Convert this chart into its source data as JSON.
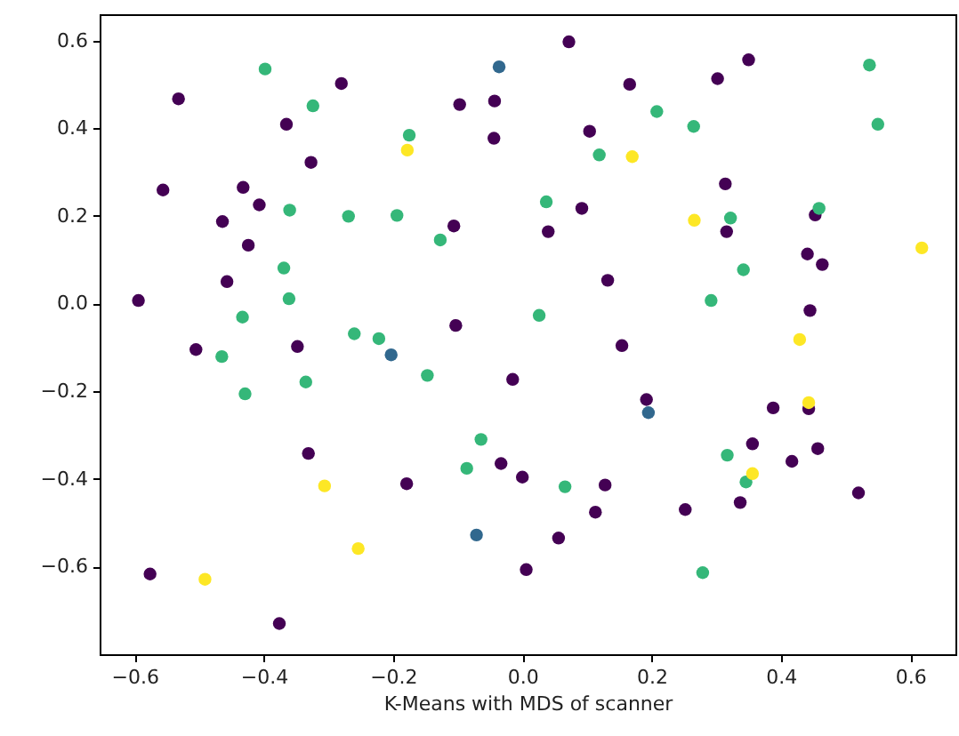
{
  "chart_data": {
    "type": "scatter",
    "xlabel": "K-Means with MDS of scanner",
    "xlim": [
      -0.654,
      0.67
    ],
    "ylim": [
      -0.8,
      0.66
    ],
    "xticks": [
      {
        "value": -0.6,
        "label": "−0.6"
      },
      {
        "value": -0.4,
        "label": "−0.4"
      },
      {
        "value": -0.2,
        "label": "−0.2"
      },
      {
        "value": 0,
        "label": "0.0"
      },
      {
        "value": 0.2,
        "label": "0.2"
      },
      {
        "value": 0.4,
        "label": "0.4"
      },
      {
        "value": 0.6,
        "label": "0.6"
      }
    ],
    "yticks": [
      {
        "value": -0.6,
        "label": "−0.6"
      },
      {
        "value": -0.4,
        "label": "−0.4"
      },
      {
        "value": -0.2,
        "label": "−0.2"
      },
      {
        "value": 0,
        "label": "0.0"
      },
      {
        "value": 0.2,
        "label": "0.2"
      },
      {
        "value": 0.4,
        "label": "0.4"
      },
      {
        "value": 0.6,
        "label": "0.6"
      }
    ],
    "grid": false,
    "marker": "circle",
    "series": [
      {
        "color": "#440154",
        "x": [
          -0.532,
          -0.28,
          -0.097,
          -0.043,
          -0.365,
          -0.044,
          -0.327,
          -0.556,
          -0.432,
          -0.407,
          -0.464,
          -0.106,
          -0.424,
          0.072,
          0.35,
          0.166,
          0.302,
          0.104,
          0.314,
          0.092,
          0.453,
          0.04,
          0.316,
          0.441,
          0.464,
          0.132,
          0.445,
          0.154,
          -0.015,
          0.192,
          0.388,
          0.443,
          0.356,
          0.457,
          0.417,
          0.0,
          0.128,
          0.113,
          0.252,
          0.337,
          0.52,
          0.056,
          0.006,
          -0.457,
          -0.594,
          -0.103,
          -0.505,
          -0.348,
          -0.331,
          -0.033,
          -0.179,
          -0.576,
          -0.376
        ],
        "values": [
          0.467,
          0.502,
          0.454,
          0.462,
          0.409,
          0.377,
          0.322,
          0.259,
          0.265,
          0.225,
          0.187,
          0.177,
          0.133,
          0.597,
          0.556,
          0.5,
          0.513,
          0.393,
          0.273,
          0.217,
          0.202,
          0.164,
          0.164,
          0.113,
          0.089,
          0.053,
          -0.016,
          -0.096,
          -0.173,
          -0.219,
          -0.238,
          -0.24,
          -0.32,
          -0.331,
          -0.36,
          -0.396,
          -0.414,
          -0.476,
          -0.47,
          -0.454,
          -0.432,
          -0.535,
          -0.607,
          0.05,
          0.007,
          -0.05,
          -0.105,
          -0.098,
          -0.342,
          -0.365,
          -0.411,
          -0.617,
          -0.73
        ]
      },
      {
        "color": "#31688e",
        "x": [
          -0.036,
          0.195,
          -0.203,
          -0.071
        ],
        "values": [
          0.54,
          -0.249,
          -0.117,
          -0.528
        ]
      },
      {
        "color": "#35b779",
        "x": [
          -0.398,
          -0.324,
          -0.175,
          -0.36,
          -0.269,
          -0.194,
          -0.127,
          0.537,
          0.208,
          0.265,
          0.55,
          0.119,
          0.037,
          0.322,
          0.459,
          0.342,
          0.292,
          0.026,
          0.317,
          0.346,
          0.066,
          0.279,
          -0.369,
          -0.361,
          -0.433,
          -0.465,
          -0.26,
          -0.222,
          -0.335,
          -0.147,
          -0.429,
          -0.064,
          -0.086
        ],
        "values": [
          0.535,
          0.451,
          0.384,
          0.213,
          0.199,
          0.201,
          0.145,
          0.544,
          0.438,
          0.404,
          0.409,
          0.339,
          0.232,
          0.195,
          0.217,
          0.077,
          0.007,
          -0.027,
          -0.346,
          -0.407,
          -0.418,
          -0.614,
          0.081,
          0.011,
          -0.031,
          -0.121,
          -0.069,
          -0.08,
          -0.179,
          -0.164,
          -0.206,
          -0.31,
          -0.376
        ]
      },
      {
        "color": "#fde725",
        "x": [
          -0.178,
          0.17,
          0.266,
          0.618,
          0.429,
          0.443,
          0.356,
          -0.306,
          -0.254,
          -0.491
        ],
        "values": [
          0.35,
          0.335,
          0.19,
          0.127,
          -0.082,
          -0.226,
          -0.388,
          -0.416,
          -0.559,
          -0.629
        ]
      }
    ]
  }
}
